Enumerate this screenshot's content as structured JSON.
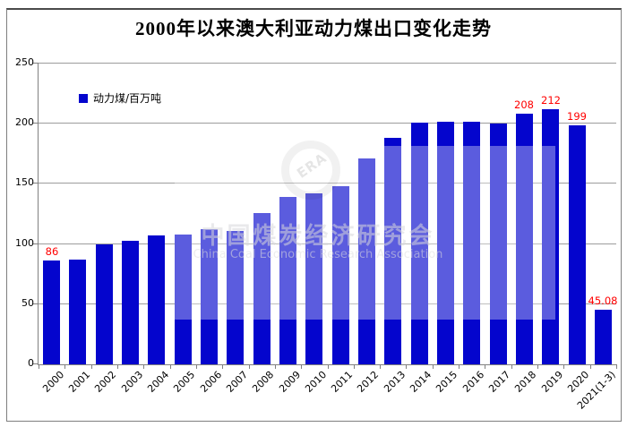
{
  "title": "2000年以来澳大利亚动力煤出口变化走势",
  "legend": {
    "label": "动力煤/百万吨",
    "marker_color": "#0405cd"
  },
  "watermark": {
    "logo_text": "ERA",
    "cn": "中国煤炭经济研究会",
    "en": "China Coal Economic Research Association"
  },
  "colors": {
    "bar": "#0405cd",
    "value_label": "#ff0000",
    "gridline": "#9c9c9c",
    "axis": "#808080",
    "border": "#7f7f7f"
  },
  "chart_data": {
    "type": "bar",
    "title": "2000年以来澳大利亚动力煤出口变化走势",
    "series_name": "动力煤/百万吨",
    "categories": [
      "2000",
      "2001",
      "2002",
      "2003",
      "2004",
      "2005",
      "2006",
      "2007",
      "2008",
      "2009",
      "2010",
      "2011",
      "2012",
      "2013",
      "2014",
      "2015",
      "2016",
      "2017",
      "2018",
      "2019",
      "2020",
      "2021(1-3)"
    ],
    "values": [
      86,
      87,
      100,
      103,
      107,
      108,
      112,
      111,
      126,
      139,
      142,
      148,
      171,
      188,
      201,
      202,
      202,
      200,
      208,
      212,
      199,
      45.08
    ],
    "value_labels": {
      "0": "86",
      "18": "208",
      "19": "212",
      "20": "199",
      "21": "45.08"
    },
    "xlabel": "",
    "ylabel": "",
    "ylim": [
      0,
      250
    ],
    "ytick_step": 50,
    "yticks": [
      0,
      50,
      100,
      150,
      200,
      250
    ],
    "grid": true,
    "legend_position": "top-left-inside",
    "bar_color": "#0405cd",
    "value_label_color": "#ff0000"
  }
}
